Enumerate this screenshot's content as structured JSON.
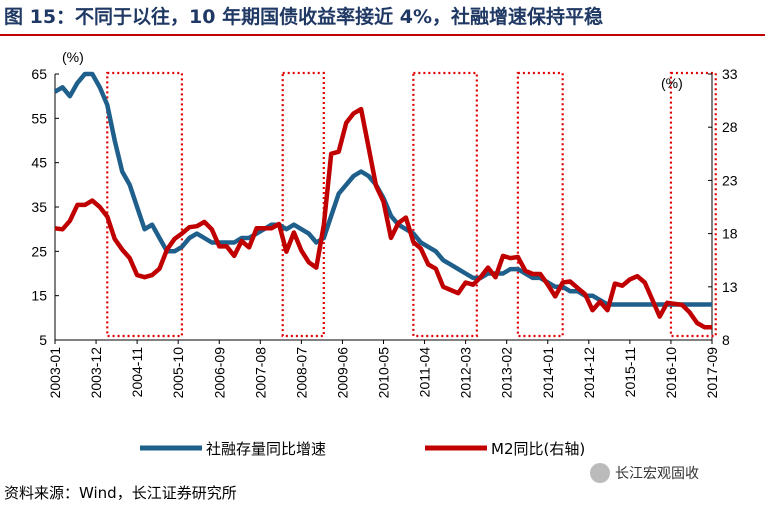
{
  "title": "图 15：不同于以往，10 年期国债收益率接近 4%，社融增速保持平稳",
  "source": "资料来源：Wind，长江证券研究所",
  "watermark": "长江宏观固收",
  "colors": {
    "series1": "#1f5f8b",
    "series2": "#c00000",
    "box": "#e00000",
    "title": "#1f3864"
  },
  "chart_data": {
    "type": "line",
    "y_left": {
      "label": "(%)",
      "ticks": [
        5,
        15,
        25,
        35,
        45,
        55,
        65
      ],
      "range": [
        5,
        65
      ]
    },
    "y_right": {
      "label": "(%)",
      "ticks": [
        8,
        13,
        18,
        23,
        28,
        33
      ],
      "range": [
        8,
        33
      ]
    },
    "x_ticks": [
      "2003-01",
      "2003-12",
      "2004-11",
      "2005-10",
      "2006-09",
      "2007-08",
      "2008-07",
      "2009-06",
      "2010-05",
      "2011-04",
      "2012-03",
      "2013-02",
      "2014-01",
      "2014-12",
      "2015-11",
      "2016-10",
      "2017-09"
    ],
    "x_range": [
      "2003-01",
      "2017-09"
    ],
    "highlight_periods": [
      [
        "2004-03",
        "2005-11"
      ],
      [
        "2008-02",
        "2009-01"
      ],
      [
        "2011-01",
        "2012-06"
      ],
      [
        "2013-05",
        "2014-05"
      ],
      [
        "2016-10",
        "2017-10"
      ]
    ],
    "series": [
      {
        "name": "社融存量同比增速",
        "axis": "left",
        "points": [
          [
            "2003-01",
            61
          ],
          [
            "2003-03",
            62
          ],
          [
            "2003-05",
            60
          ],
          [
            "2003-07",
            63
          ],
          [
            "2003-09",
            65
          ],
          [
            "2003-11",
            65
          ],
          [
            "2004-01",
            62
          ],
          [
            "2004-03",
            58
          ],
          [
            "2004-05",
            50
          ],
          [
            "2004-07",
            43
          ],
          [
            "2004-09",
            40
          ],
          [
            "2004-11",
            35
          ],
          [
            "2005-01",
            30
          ],
          [
            "2005-03",
            31
          ],
          [
            "2005-05",
            28
          ],
          [
            "2005-07",
            25
          ],
          [
            "2005-09",
            25
          ],
          [
            "2005-11",
            26
          ],
          [
            "2006-01",
            28
          ],
          [
            "2006-03",
            29
          ],
          [
            "2006-05",
            28
          ],
          [
            "2006-07",
            27
          ],
          [
            "2006-09",
            27
          ],
          [
            "2006-11",
            27
          ],
          [
            "2007-01",
            27
          ],
          [
            "2007-03",
            28
          ],
          [
            "2007-05",
            28
          ],
          [
            "2007-07",
            29
          ],
          [
            "2007-09",
            30
          ],
          [
            "2007-11",
            31
          ],
          [
            "2008-01",
            31
          ],
          [
            "2008-03",
            30
          ],
          [
            "2008-05",
            31
          ],
          [
            "2008-07",
            30
          ],
          [
            "2008-09",
            29
          ],
          [
            "2008-11",
            27
          ],
          [
            "2009-01",
            28
          ],
          [
            "2009-03",
            33
          ],
          [
            "2009-05",
            38
          ],
          [
            "2009-07",
            40
          ],
          [
            "2009-09",
            42
          ],
          [
            "2009-11",
            43
          ],
          [
            "2010-01",
            42
          ],
          [
            "2010-03",
            40
          ],
          [
            "2010-05",
            37
          ],
          [
            "2010-07",
            33
          ],
          [
            "2010-09",
            31
          ],
          [
            "2010-11",
            30
          ],
          [
            "2011-01",
            29
          ],
          [
            "2011-03",
            27
          ],
          [
            "2011-05",
            26
          ],
          [
            "2011-07",
            25
          ],
          [
            "2011-09",
            23
          ],
          [
            "2011-11",
            22
          ],
          [
            "2012-01",
            21
          ],
          [
            "2012-03",
            20
          ],
          [
            "2012-05",
            19
          ],
          [
            "2012-07",
            19
          ],
          [
            "2012-09",
            20
          ],
          [
            "2012-11",
            20
          ],
          [
            "2013-01",
            20
          ],
          [
            "2013-03",
            21
          ],
          [
            "2013-05",
            21
          ],
          [
            "2013-07",
            20
          ],
          [
            "2013-09",
            19
          ],
          [
            "2013-11",
            19
          ],
          [
            "2014-01",
            18
          ],
          [
            "2014-03",
            17
          ],
          [
            "2014-05",
            17
          ],
          [
            "2014-07",
            16
          ],
          [
            "2014-09",
            16
          ],
          [
            "2014-11",
            15
          ],
          [
            "2015-01",
            15
          ],
          [
            "2015-03",
            14
          ],
          [
            "2015-05",
            13
          ],
          [
            "2015-07",
            13
          ],
          [
            "2015-09",
            13
          ],
          [
            "2015-11",
            13
          ],
          [
            "2016-01",
            13
          ],
          [
            "2016-03",
            13
          ],
          [
            "2016-05",
            13
          ],
          [
            "2016-07",
            13
          ],
          [
            "2016-09",
            13
          ],
          [
            "2016-11",
            13
          ],
          [
            "2017-01",
            13
          ],
          [
            "2017-03",
            13
          ],
          [
            "2017-05",
            13
          ],
          [
            "2017-07",
            13
          ],
          [
            "2017-09",
            13
          ]
        ]
      },
      {
        "name": "M2同比(右轴)",
        "axis": "right",
        "points": [
          [
            "2003-01",
            18.5
          ],
          [
            "2003-03",
            18.4
          ],
          [
            "2003-05",
            19.2
          ],
          [
            "2003-07",
            20.7
          ],
          [
            "2003-09",
            20.7
          ],
          [
            "2003-11",
            21.1
          ],
          [
            "2004-01",
            20.5
          ],
          [
            "2004-03",
            19.6
          ],
          [
            "2004-05",
            17.5
          ],
          [
            "2004-07",
            16.5
          ],
          [
            "2004-09",
            15.7
          ],
          [
            "2004-11",
            14.1
          ],
          [
            "2005-01",
            13.9
          ],
          [
            "2005-03",
            14.1
          ],
          [
            "2005-05",
            14.7
          ],
          [
            "2005-07",
            16.5
          ],
          [
            "2005-09",
            17.5
          ],
          [
            "2005-11",
            18.0
          ],
          [
            "2006-01",
            18.6
          ],
          [
            "2006-03",
            18.7
          ],
          [
            "2006-05",
            19.1
          ],
          [
            "2006-07",
            18.4
          ],
          [
            "2006-09",
            16.8
          ],
          [
            "2006-11",
            16.8
          ],
          [
            "2007-01",
            15.9
          ],
          [
            "2007-03",
            17.3
          ],
          [
            "2007-05",
            16.7
          ],
          [
            "2007-07",
            18.5
          ],
          [
            "2007-09",
            18.5
          ],
          [
            "2007-11",
            18.5
          ],
          [
            "2008-01",
            18.9
          ],
          [
            "2008-03",
            16.3
          ],
          [
            "2008-05",
            18.1
          ],
          [
            "2008-07",
            16.4
          ],
          [
            "2008-09",
            15.3
          ],
          [
            "2008-11",
            14.8
          ],
          [
            "2009-01",
            18.8
          ],
          [
            "2009-03",
            25.5
          ],
          [
            "2009-05",
            25.7
          ],
          [
            "2009-07",
            28.4
          ],
          [
            "2009-09",
            29.3
          ],
          [
            "2009-11",
            29.7
          ],
          [
            "2010-01",
            26.1
          ],
          [
            "2010-03",
            22.5
          ],
          [
            "2010-05",
            21.0
          ],
          [
            "2010-07",
            17.6
          ],
          [
            "2010-09",
            19.0
          ],
          [
            "2010-11",
            19.5
          ],
          [
            "2011-01",
            17.2
          ],
          [
            "2011-03",
            16.6
          ],
          [
            "2011-05",
            15.1
          ],
          [
            "2011-07",
            14.7
          ],
          [
            "2011-09",
            13.0
          ],
          [
            "2011-11",
            12.7
          ],
          [
            "2012-01",
            12.4
          ],
          [
            "2012-03",
            13.4
          ],
          [
            "2012-05",
            13.2
          ],
          [
            "2012-07",
            13.9
          ],
          [
            "2012-09",
            14.8
          ],
          [
            "2012-11",
            13.9
          ],
          [
            "2013-01",
            15.9
          ],
          [
            "2013-03",
            15.7
          ],
          [
            "2013-05",
            15.8
          ],
          [
            "2013-07",
            14.5
          ],
          [
            "2013-09",
            14.2
          ],
          [
            "2013-11",
            14.2
          ],
          [
            "2014-01",
            13.2
          ],
          [
            "2014-03",
            12.1
          ],
          [
            "2014-05",
            13.4
          ],
          [
            "2014-07",
            13.5
          ],
          [
            "2014-09",
            12.9
          ],
          [
            "2014-11",
            12.3
          ],
          [
            "2015-01",
            10.8
          ],
          [
            "2015-03",
            11.6
          ],
          [
            "2015-05",
            10.8
          ],
          [
            "2015-07",
            13.3
          ],
          [
            "2015-09",
            13.1
          ],
          [
            "2015-11",
            13.7
          ],
          [
            "2016-01",
            14.0
          ],
          [
            "2016-03",
            13.4
          ],
          [
            "2016-05",
            11.8
          ],
          [
            "2016-07",
            10.2
          ],
          [
            "2016-09",
            11.5
          ],
          [
            "2016-11",
            11.4
          ],
          [
            "2017-01",
            11.3
          ],
          [
            "2017-03",
            10.6
          ],
          [
            "2017-05",
            9.6
          ],
          [
            "2017-07",
            9.2
          ],
          [
            "2017-09",
            9.2
          ]
        ]
      }
    ]
  }
}
